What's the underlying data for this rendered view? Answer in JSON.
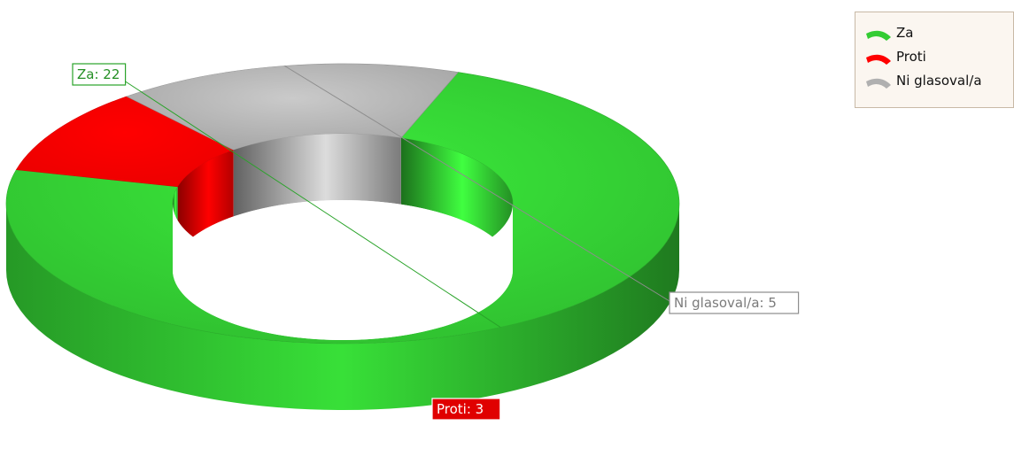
{
  "chart_data": {
    "type": "pie",
    "style": "3d-donut",
    "categories": [
      "Za",
      "Proti",
      "Ni glasoval/a"
    ],
    "values": [
      22,
      3,
      5
    ],
    "colors": [
      "#33cc33",
      "#ff0000",
      "#b0b0b0"
    ],
    "legend": "top-right",
    "data_labels": [
      "Za: 22",
      "Proti: 3",
      "Ni glasoval/a: 5"
    ]
  },
  "legend": {
    "items": [
      {
        "label": "Za",
        "color": "#33cc33"
      },
      {
        "label": "Proti",
        "color": "#ff0000"
      },
      {
        "label": "Ni glasoval/a",
        "color": "#b0b0b0"
      }
    ]
  }
}
